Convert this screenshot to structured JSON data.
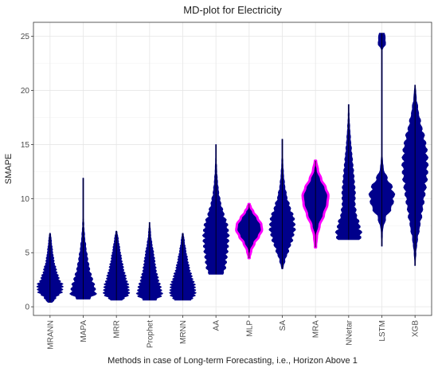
{
  "chart_data": {
    "type": "violin",
    "title": "MD-plot for Electricity",
    "xlabel": "Methods in case of Long-term Forecasting, i.e., Horizon Above 1",
    "ylabel": "SMAPE",
    "ylim": [
      -0.8,
      26.3
    ],
    "yticks": [
      0,
      5,
      10,
      15,
      20,
      25
    ],
    "grid": true,
    "colors": {
      "fill": "#00008b",
      "highlight": "#ff00ff",
      "grid": "#e6e6e6"
    },
    "categories": [
      "MRANN",
      "MAPA",
      "MRR",
      "Prophet",
      "MRNN",
      "AA",
      "MLP",
      "SA",
      "MRA",
      "NNetar",
      "LSTM",
      "XGB"
    ],
    "series": [
      {
        "category": "MRANN",
        "min": 0.4,
        "max": 6.8,
        "profile": [
          [
            0.4,
            0.2
          ],
          [
            0.8,
            0.45
          ],
          [
            1.4,
            0.95
          ],
          [
            2.0,
            1.0
          ],
          [
            2.6,
            0.7
          ],
          [
            3.4,
            0.5
          ],
          [
            4.2,
            0.32
          ],
          [
            5.2,
            0.2
          ],
          [
            6.0,
            0.12
          ],
          [
            6.8,
            0.05
          ]
        ]
      },
      {
        "category": "MAPA",
        "min": 0.7,
        "max": 11.9,
        "profile": [
          [
            0.7,
            0.5
          ],
          [
            1.2,
            1.0
          ],
          [
            1.8,
            0.92
          ],
          [
            2.6,
            0.72
          ],
          [
            3.5,
            0.5
          ],
          [
            4.5,
            0.35
          ],
          [
            5.5,
            0.22
          ],
          [
            6.5,
            0.12
          ],
          [
            7.5,
            0.06
          ],
          [
            8.5,
            0.03
          ],
          [
            10.0,
            0.02
          ],
          [
            11.9,
            0.01
          ]
        ]
      },
      {
        "category": "MRR",
        "min": 0.6,
        "max": 7.0,
        "profile": [
          [
            0.6,
            0.5
          ],
          [
            1.2,
            1.0
          ],
          [
            1.9,
            0.95
          ],
          [
            2.7,
            0.75
          ],
          [
            3.6,
            0.55
          ],
          [
            4.5,
            0.4
          ],
          [
            5.4,
            0.27
          ],
          [
            6.2,
            0.16
          ],
          [
            7.0,
            0.05
          ]
        ]
      },
      {
        "category": "Prophet",
        "min": 0.6,
        "max": 7.8,
        "profile": [
          [
            0.6,
            0.5
          ],
          [
            1.1,
            1.0
          ],
          [
            1.8,
            0.88
          ],
          [
            2.6,
            0.68
          ],
          [
            3.4,
            0.52
          ],
          [
            4.2,
            0.42
          ],
          [
            5.0,
            0.32
          ],
          [
            5.8,
            0.2
          ],
          [
            6.6,
            0.1
          ],
          [
            7.8,
            0.03
          ]
        ]
      },
      {
        "category": "MRNN",
        "min": 0.6,
        "max": 6.8,
        "profile": [
          [
            0.6,
            0.7
          ],
          [
            1.2,
            1.0
          ],
          [
            2.0,
            0.95
          ],
          [
            2.8,
            0.72
          ],
          [
            3.6,
            0.52
          ],
          [
            4.4,
            0.38
          ],
          [
            5.2,
            0.25
          ],
          [
            6.0,
            0.14
          ],
          [
            6.8,
            0.05
          ]
        ]
      },
      {
        "category": "AA",
        "min": 3.0,
        "max": 15.0,
        "profile": [
          [
            3.0,
            0.55
          ],
          [
            3.6,
            0.75
          ],
          [
            4.5,
            0.85
          ],
          [
            5.5,
            0.95
          ],
          [
            6.6,
            1.0
          ],
          [
            7.6,
            0.9
          ],
          [
            8.6,
            0.62
          ],
          [
            9.6,
            0.38
          ],
          [
            10.6,
            0.22
          ],
          [
            11.6,
            0.13
          ],
          [
            12.6,
            0.07
          ],
          [
            13.6,
            0.04
          ],
          [
            15.0,
            0.02
          ]
        ]
      },
      {
        "category": "MLP",
        "min": 4.5,
        "max": 9.5,
        "profile": [
          [
            4.5,
            0.02
          ],
          [
            5.2,
            0.15
          ],
          [
            5.9,
            0.4
          ],
          [
            6.5,
            0.72
          ],
          [
            7.1,
            0.95
          ],
          [
            7.6,
            0.9
          ],
          [
            8.2,
            0.62
          ],
          [
            8.8,
            0.3
          ],
          [
            9.2,
            0.12
          ],
          [
            9.5,
            0.03
          ]
        ]
      },
      {
        "category": "SA",
        "min": 3.5,
        "max": 15.5,
        "profile": [
          [
            3.5,
            0.05
          ],
          [
            4.3,
            0.22
          ],
          [
            5.2,
            0.5
          ],
          [
            6.2,
            0.8
          ],
          [
            7.2,
            1.0
          ],
          [
            8.2,
            0.92
          ],
          [
            9.2,
            0.62
          ],
          [
            10.2,
            0.36
          ],
          [
            11.2,
            0.2
          ],
          [
            12.2,
            0.11
          ],
          [
            13.2,
            0.06
          ],
          [
            14.2,
            0.03
          ],
          [
            15.5,
            0.01
          ]
        ]
      },
      {
        "category": "MRA",
        "min": 5.5,
        "max": 13.5,
        "profile": [
          [
            5.5,
            0.02
          ],
          [
            6.5,
            0.1
          ],
          [
            7.5,
            0.3
          ],
          [
            8.5,
            0.62
          ],
          [
            9.5,
            0.88
          ],
          [
            10.3,
            0.95
          ],
          [
            11.0,
            0.75
          ],
          [
            11.8,
            0.42
          ],
          [
            12.6,
            0.18
          ],
          [
            13.5,
            0.04
          ]
        ]
      },
      {
        "category": "NNetar",
        "min": 6.2,
        "max": 18.7,
        "profile": [
          [
            6.2,
            0.9
          ],
          [
            6.8,
            1.0
          ],
          [
            7.6,
            0.85
          ],
          [
            8.6,
            0.6
          ],
          [
            9.6,
            0.5
          ],
          [
            10.6,
            0.52
          ],
          [
            11.6,
            0.45
          ],
          [
            12.6,
            0.38
          ],
          [
            13.6,
            0.3
          ],
          [
            14.6,
            0.22
          ],
          [
            15.6,
            0.15
          ],
          [
            16.6,
            0.09
          ],
          [
            17.6,
            0.05
          ],
          [
            18.7,
            0.02
          ]
        ]
      },
      {
        "category": "LSTM",
        "min": 5.6,
        "max": 25.3,
        "profile": [
          [
            5.6,
            0.02
          ],
          [
            7.0,
            0.06
          ],
          [
            8.2,
            0.3
          ],
          [
            9.2,
            0.8
          ],
          [
            10.2,
            1.0
          ],
          [
            11.0,
            0.85
          ],
          [
            11.8,
            0.45
          ],
          [
            12.8,
            0.12
          ],
          [
            14.0,
            0.04
          ],
          [
            16.0,
            0.02
          ],
          [
            19.0,
            0.012
          ],
          [
            22.0,
            0.012
          ],
          [
            23.8,
            0.015
          ],
          [
            24.2,
            0.28
          ],
          [
            24.8,
            0.3
          ],
          [
            25.3,
            0.2
          ]
        ]
      },
      {
        "category": "XGB",
        "min": 3.8,
        "max": 20.5,
        "profile": [
          [
            3.8,
            0.02
          ],
          [
            5.0,
            0.08
          ],
          [
            6.2,
            0.2
          ],
          [
            7.4,
            0.38
          ],
          [
            8.6,
            0.55
          ],
          [
            9.8,
            0.7
          ],
          [
            11.0,
            0.85
          ],
          [
            12.2,
            0.97
          ],
          [
            13.4,
            1.0
          ],
          [
            14.6,
            0.92
          ],
          [
            15.8,
            0.72
          ],
          [
            17.0,
            0.45
          ],
          [
            18.2,
            0.25
          ],
          [
            19.4,
            0.1
          ],
          [
            20.5,
            0.03
          ]
        ]
      }
    ],
    "highlighted": [
      "MLP",
      "MRA"
    ]
  }
}
